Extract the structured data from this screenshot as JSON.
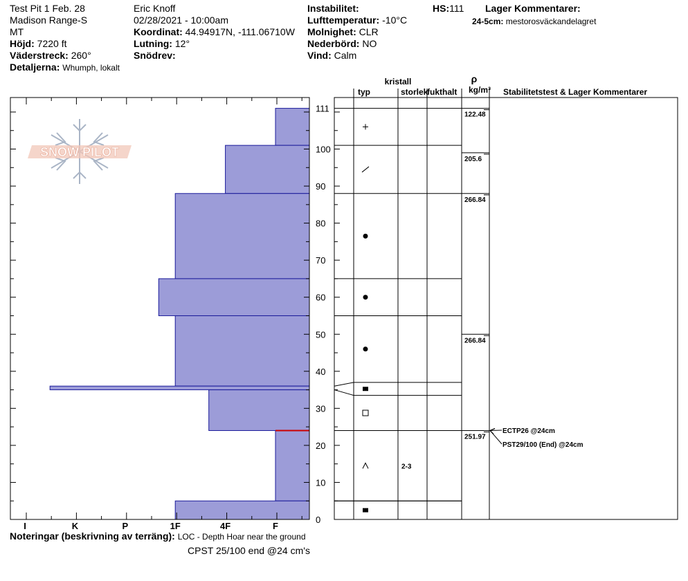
{
  "header": {
    "pit_name": "Test Pit 1 Feb. 28",
    "range": "Madison Range-S",
    "state": "MT",
    "elevation_label": "Höjd:",
    "elevation_value": "7220 ft",
    "aspect_label": "Väderstreck:",
    "aspect_value": "260°",
    "details_label": "Detaljerna:",
    "details_value": "Whumph, lokalt",
    "observer": "Eric Knoff",
    "datetime": "02/28/2021 - 10:00am",
    "coord_label": "Koordinat:",
    "coord_value": "44.94917N, -111.06710W",
    "slope_label": "Lutning:",
    "slope_value": "12°",
    "drift_label": "Snödrev:",
    "drift_value": "",
    "instability_label": "Instabilitet:",
    "instability_value": "",
    "airtemp_label": "Lufttemperatur:",
    "airtemp_value": "-10°C",
    "sky_label": "Molnighet:",
    "sky_value": "CLR",
    "precip_label": "Nederbörd:",
    "precip_value": "NO",
    "wind_label": "Vind:",
    "wind_value": "Calm",
    "hs_label": "HS:",
    "hs_value": "111",
    "layer_comments_title": "Lager Kommentarer:",
    "layer_comment_depth": "24-5cm:",
    "layer_comment_text": "mestorosväckandelagret"
  },
  "logo": {
    "text": "SNOW PILOT"
  },
  "columns": {
    "kristall": "kristall",
    "typ": "typ",
    "storlek": "storlek",
    "fukthalt": "fukthalt",
    "rho": "ρ",
    "density_unit": "kg/m³",
    "stability": "Stabilitetstest & Lager Kommentarer"
  },
  "chart_data": {
    "type": "bar",
    "orientation": "horizontal",
    "y_unit": "cm",
    "ylim": [
      0,
      114
    ],
    "yticks": [
      0,
      10,
      20,
      30,
      40,
      50,
      60,
      70,
      80,
      90,
      100,
      110
    ],
    "hs_tick": 111,
    "hardness_labels": [
      "I",
      "K",
      "P",
      "1F",
      "4F",
      "F"
    ],
    "hardness_scale_note": "hardness values: F=1, 4F=2, 1F=3, P=4, K=5, I=6 (left end of plot = 6.3)",
    "layers": [
      {
        "top": 111,
        "bottom": 101,
        "hardness": 1
      },
      {
        "top": 101,
        "bottom": 88,
        "hardness": 2
      },
      {
        "top": 88,
        "bottom": 65,
        "hardness": 3
      },
      {
        "top": 65,
        "bottom": 55,
        "hardness": 3.33
      },
      {
        "top": 55,
        "bottom": 36,
        "hardness": 3
      },
      {
        "top": 36,
        "bottom": 35,
        "hardness": 5.5
      },
      {
        "top": 35,
        "bottom": 24,
        "hardness": 2.33
      },
      {
        "top": 24,
        "bottom": 5,
        "hardness": 1
      },
      {
        "top": 5,
        "bottom": 0,
        "hardness": 3
      }
    ],
    "weak_layer": 24,
    "crystal_layers": [
      {
        "top": 111,
        "bottom": 101,
        "grain": "plus",
        "size": ""
      },
      {
        "top": 101,
        "bottom": 88,
        "grain": "slash",
        "size": ""
      },
      {
        "top": 88,
        "bottom": 65,
        "grain": "dot",
        "size": ""
      },
      {
        "top": 65,
        "bottom": 55,
        "grain": "dot",
        "size": ""
      },
      {
        "top": 55,
        "bottom": 37,
        "grain": "dot",
        "size": ""
      },
      {
        "top": 37,
        "bottom": 33.5,
        "grain": "square-filled",
        "size": ""
      },
      {
        "top": 33.5,
        "bottom": 24,
        "grain": "square-open",
        "size": ""
      },
      {
        "top": 24,
        "bottom": 5,
        "grain": "caret",
        "size": "2-3"
      },
      {
        "top": 5,
        "bottom": 0,
        "grain": "square-filled",
        "size": ""
      }
    ],
    "densities": [
      {
        "top": 111,
        "bottom": 99,
        "value": "122.48"
      },
      {
        "top": 99,
        "bottom": 88,
        "value": "205.6"
      },
      {
        "top": 88,
        "bottom": 50,
        "value": "266.84"
      },
      {
        "top": 50,
        "bottom": 24,
        "value": "266.84"
      },
      {
        "top": 24,
        "bottom": 0,
        "value": "251.97"
      }
    ],
    "stability_tests": [
      {
        "depth": 24,
        "label": "ECTP26 @24cm"
      },
      {
        "depth": 24,
        "label": "PST29/100 (End) @24cm"
      }
    ]
  },
  "notes": {
    "label": "Noteringar (beskrivning av terräng):",
    "line1": "LOC - Depth Hoar near the ground",
    "line2": "CPST 25/100 end @24 cm's"
  },
  "colors": {
    "bar_fill": "#9c9cd8",
    "bar_stroke": "#1a1a9a",
    "weak_layer": "#cc0000",
    "logo_text": "#f2c7b8",
    "logo_flake": "#aab5c6"
  }
}
